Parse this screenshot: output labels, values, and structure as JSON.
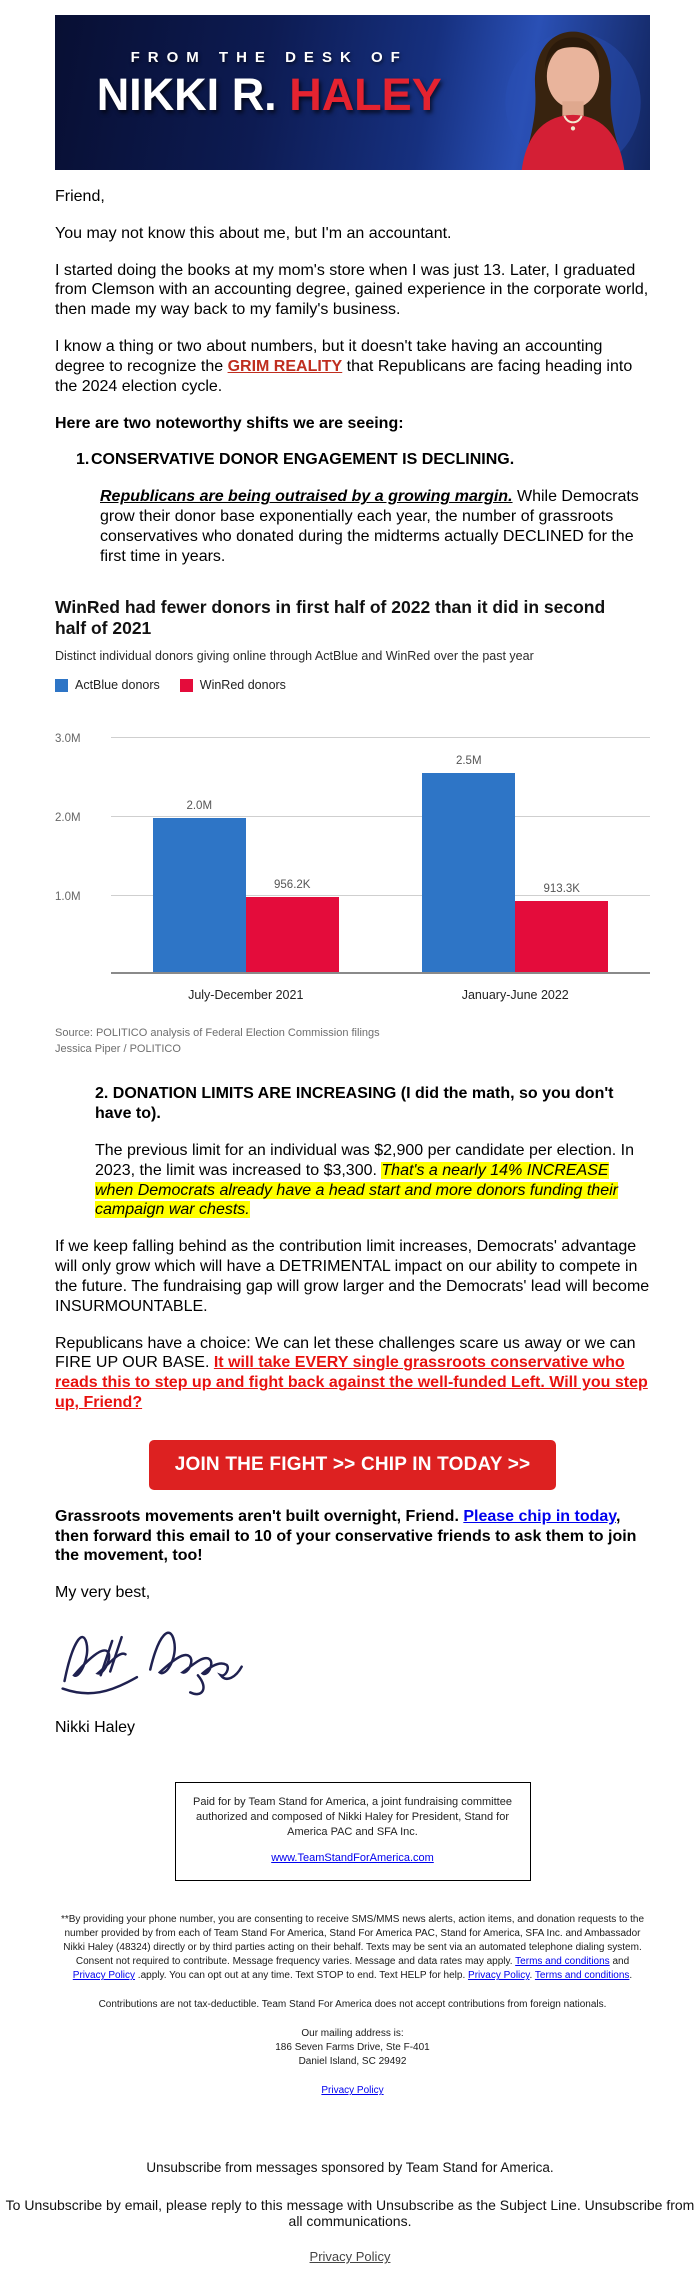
{
  "colors": {
    "banner_navy": "#0d1b52",
    "accent_red": "#e52330",
    "button_red": "#dd2121",
    "link_red": "#bf2e1f",
    "bright_red_link": "#e8120f",
    "link_blue": "#0000ee",
    "highlight_yellow": "#ffff00"
  },
  "header": {
    "kicker": "FROM THE DESK OF",
    "name_white": "NIKKI R.",
    "name_red": " HALEY"
  },
  "letter": {
    "salutation": "Friend,",
    "p1": "You may not know this about me, but I'm an accountant.",
    "p2": "I started doing the books at my mom's store when I was just 13. Later, I graduated from Clemson with an accounting degree, gained experience in the corporate world, then made my way back to my family's business.",
    "p3_pre": "I know a thing or two about numbers, but it doesn't take having an accounting degree to recognize the ",
    "p3_link": "GRIM REALITY",
    "p3_post": " that Republicans are facing heading into the 2024 election cycle.",
    "p4": "Here are two noteworthy shifts we are seeing:",
    "item1_num": "1.",
    "item1_title": "CONSERVATIVE DONOR ENGAGEMENT IS DECLINING.",
    "item1_lead": "Republicans are being outraised by a growing margin.",
    "item1_rest": " While Democrats grow their donor base exponentially each year, the number of grassroots conservatives who donated during the midterms actually DECLINED for the first time in years.",
    "item2_title": "2. DONATION LIMITS ARE INCREASING (I did the math, so you don't have to).",
    "item2_pre": "The previous limit for an individual was $2,900 per candidate per election. In 2023, the limit was increased to $3,300. ",
    "item2_highlight": "That's a nearly 14% INCREASE when Democrats already have a head start and more donors funding their campaign war chests.",
    "p5": "If we keep falling behind as the contribution limit increases, Democrats' advantage will only grow which will have a DETRIMENTAL impact on our ability to compete in the future. The fundraising gap will grow larger and the Democrats' lead will become INSURMOUNTABLE.",
    "p6_pre": "Republicans have a choice: We can let these challenges scare us away or we can FIRE UP OUR BASE. ",
    "p6_link": "It will take EVERY single grassroots conservative who reads this to step up and fight back against the well-funded Left. Will you step up, Friend?",
    "cta_label": "JOIN THE FIGHT >> CHIP IN TODAY >>",
    "p7_pre": "Grassroots movements aren't built overnight, Friend. ",
    "p7_link": "Please chip in today",
    "p7_post": ", then forward this email to 10 of your conservative friends to ask them to join the movement, too!",
    "closing": "My very best,",
    "signer_name": "Nikki Haley"
  },
  "chart_data": {
    "type": "bar",
    "title": "WinRed had fewer donors in first half of 2022 than it did in second half of 2021",
    "subtitle": "Distinct individual donors giving online through ActBlue and WinRed over the past year",
    "categories": [
      "July-December 2021",
      "January-June 2022"
    ],
    "series": [
      {
        "name": "ActBlue donors",
        "color": "#2e75c6",
        "values": [
          1960000,
          2530000
        ],
        "labels": [
          "2.0M",
          "2.5M"
        ]
      },
      {
        "name": "WinRed donors",
        "color": "#e40c3b",
        "values": [
          956200,
          913300
        ],
        "labels": [
          "956.2K",
          "913.3K"
        ]
      }
    ],
    "ylim": [
      0,
      3000000
    ],
    "yticks": [
      {
        "value": 1000000,
        "label": "1.0M"
      },
      {
        "value": 2000000,
        "label": "2.0M"
      },
      {
        "value": 3000000,
        "label": "3.0M"
      }
    ],
    "grid": true,
    "legend_position": "top-left",
    "source_line1": "Source: POLITICO analysis of Federal Election Commission filings",
    "source_line2": "Jessica Piper / POLITICO"
  },
  "footer": {
    "paid_for": "Paid for by Team Stand for America, a joint fundraising committee authorized and composed of Nikki Haley for President, Stand for America PAC and SFA Inc.",
    "website": "www.TeamStandForAmerica.com",
    "sms": {
      "s1": "**By providing your phone number, you are consenting to receive SMS/MMS news alerts, action items, and donation requests to the number provided by from each of Team Stand For America, Stand For America PAC, Stand for America, SFA Inc. and Ambassador Nikki Haley (48324) directly or by third parties acting on their behalf. Texts may be sent via an automated telephone dialing system. Consent not required to contribute. Message frequency varies. Message and data rates may apply. ",
      "terms1": "Terms and conditions",
      "s2": " and ",
      "privacy1": "Privacy Policy",
      "s3": " .apply. You can opt out at any time. Text STOP to end. Text HELP for help. ",
      "privacy2": "Privacy Policy",
      "s4": ". ",
      "terms2": "Terms and conditions",
      "s5": "."
    },
    "not_deductible": "Contributions are not tax-deductible. Team Stand For America does not accept contributions from foreign nationals.",
    "mailing_label": "Our mailing address is:",
    "address_line1": "186 Seven Farms Drive, Ste F-401",
    "address_line2": "Daniel Island, SC 29492",
    "privacy_policy": "Privacy Policy",
    "unsubscribe_sponsored": "Unsubscribe from messages sponsored by Team Stand for America.",
    "unsubscribe_email": "To Unsubscribe by email, please reply to this message with Unsubscribe as the Subject Line. Unsubscribe from all communications.",
    "privacy_policy_bottom": "Privacy Policy"
  }
}
